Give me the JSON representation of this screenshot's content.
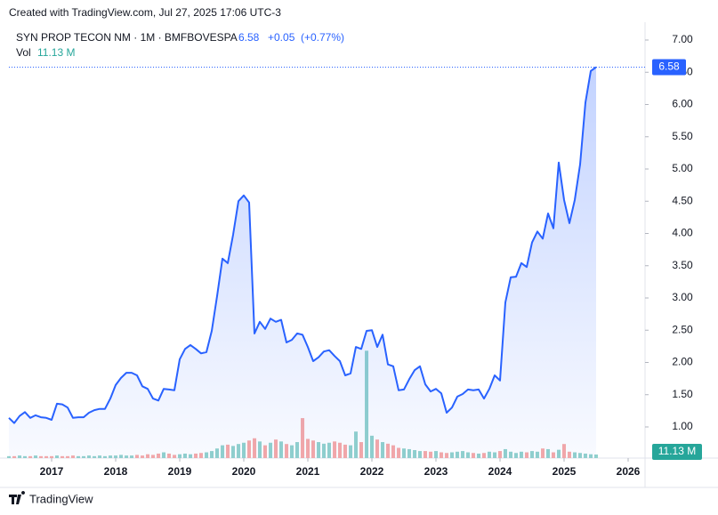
{
  "header": {
    "created": "Created with TradingView.com, Jul 27, 2025 17:06 UTC-3",
    "brand": "TradingView"
  },
  "legend": {
    "symbol": "SYN PROP TECON NM · 1M · BMFBOVESPA",
    "change": "+0.05",
    "change_pct": "(+0.77%)",
    "vol_title": "Vol",
    "vol_text": "11.13 M"
  },
  "chart_data": {
    "type": "line",
    "x": [
      2016.333,
      2016.417,
      2016.5,
      2016.583,
      2016.667,
      2016.75,
      2016.833,
      2016.917,
      2017,
      2017.083,
      2017.167,
      2017.25,
      2017.333,
      2017.417,
      2017.5,
      2017.583,
      2017.667,
      2017.75,
      2017.833,
      2017.917,
      2018,
      2018.083,
      2018.167,
      2018.25,
      2018.333,
      2018.417,
      2018.5,
      2018.583,
      2018.667,
      2018.75,
      2018.833,
      2018.917,
      2019,
      2019.083,
      2019.167,
      2019.25,
      2019.333,
      2019.417,
      2019.5,
      2019.583,
      2019.667,
      2019.75,
      2019.833,
      2019.917,
      2020,
      2020.083,
      2020.167,
      2020.25,
      2020.333,
      2020.417,
      2020.5,
      2020.583,
      2020.667,
      2020.75,
      2020.833,
      2020.917,
      2021,
      2021.083,
      2021.167,
      2021.25,
      2021.333,
      2021.417,
      2021.5,
      2021.583,
      2021.667,
      2021.75,
      2021.833,
      2021.917,
      2022,
      2022.083,
      2022.167,
      2022.25,
      2022.333,
      2022.417,
      2022.5,
      2022.583,
      2022.667,
      2022.75,
      2022.833,
      2022.917,
      2023,
      2023.083,
      2023.167,
      2023.25,
      2023.333,
      2023.417,
      2023.5,
      2023.583,
      2023.667,
      2023.75,
      2023.833,
      2023.917,
      2024,
      2024.083,
      2024.167,
      2024.25,
      2024.333,
      2024.417,
      2024.5,
      2024.583,
      2024.667,
      2024.75,
      2024.833,
      2024.917,
      2025,
      2025.083,
      2025.167,
      2025.25,
      2025.333,
      2025.417,
      2025.5
    ],
    "series": [
      {
        "name": "Price",
        "color": "#2962ff",
        "values": [
          1.14,
          1.06,
          1.17,
          1.23,
          1.14,
          1.18,
          1.15,
          1.14,
          1.11,
          1.36,
          1.35,
          1.3,
          1.14,
          1.15,
          1.15,
          1.22,
          1.26,
          1.28,
          1.28,
          1.44,
          1.65,
          1.76,
          1.84,
          1.84,
          1.8,
          1.63,
          1.59,
          1.44,
          1.41,
          1.59,
          1.58,
          1.57,
          2.05,
          2.21,
          2.27,
          2.21,
          2.14,
          2.16,
          2.49,
          3.03,
          3.61,
          3.54,
          3.98,
          4.5,
          4.59,
          4.48,
          2.45,
          2.63,
          2.52,
          2.68,
          2.63,
          2.66,
          2.31,
          2.35,
          2.45,
          2.43,
          2.24,
          2.02,
          2.08,
          2.17,
          2.19,
          2.1,
          2.02,
          1.8,
          1.83,
          2.24,
          2.21,
          2.49,
          2.5,
          2.24,
          2.43,
          1.97,
          1.94,
          1.57,
          1.58,
          1.74,
          1.88,
          1.94,
          1.66,
          1.55,
          1.59,
          1.52,
          1.22,
          1.3,
          1.47,
          1.51,
          1.58,
          1.57,
          1.58,
          1.44,
          1.59,
          1.8,
          1.72,
          2.93,
          3.32,
          3.33,
          3.54,
          3.48,
          3.86,
          4.03,
          3.92,
          4.31,
          4.08,
          5.1,
          4.52,
          4.16,
          4.52,
          5.07,
          6.03,
          6.52,
          6.58
        ]
      },
      {
        "name": "Vol",
        "axis": "y2",
        "values": [
          6,
          6,
          8,
          6,
          6,
          8,
          6,
          6,
          6,
          8,
          6,
          6,
          8,
          6,
          6,
          8,
          6,
          8,
          6,
          8,
          8,
          10,
          8,
          8,
          10,
          8,
          12,
          10,
          14,
          18,
          14,
          10,
          12,
          14,
          12,
          14,
          16,
          18,
          22,
          30,
          40,
          42,
          38,
          44,
          48,
          55,
          62,
          52,
          40,
          48,
          58,
          52,
          44,
          40,
          50,
          125,
          60,
          55,
          50,
          45,
          48,
          52,
          48,
          42,
          40,
          83,
          50,
          336,
          70,
          58,
          50,
          45,
          40,
          32,
          30,
          28,
          25,
          22,
          22,
          20,
          22,
          18,
          16,
          18,
          20,
          22,
          18,
          16,
          14,
          16,
          20,
          18,
          22,
          28,
          20,
          16,
          20,
          18,
          22,
          20,
          30,
          28,
          18,
          26,
          44,
          20,
          18,
          16,
          14,
          12,
          11.13
        ]
      }
    ],
    "up_color": "#92d2cc",
    "down_color": "#f7a9a7",
    "xlim": [
      2016.333,
      2026.264
    ],
    "xticks": [
      2017,
      2018,
      2019,
      2020,
      2021,
      2022,
      2023,
      2024,
      2025,
      2026
    ],
    "ylim": [
      0.517,
      7.207
    ],
    "yticks": [
      {
        "value": 1,
        "label": "1.00"
      },
      {
        "value": 1.5,
        "label": "1.50"
      },
      {
        "value": 2,
        "label": "2.00"
      },
      {
        "value": 2.5,
        "label": "2.50"
      },
      {
        "value": 3,
        "label": "3.00"
      },
      {
        "value": 3.5,
        "label": "3.50"
      },
      {
        "value": 4,
        "label": "4.00"
      },
      {
        "value": 4.5,
        "label": "4.50"
      },
      {
        "value": 5,
        "label": "5.00"
      },
      {
        "value": 5.5,
        "label": "5.50"
      },
      {
        "value": 6,
        "label": "6.00"
      },
      {
        "value": 6.5,
        "label": "6.50"
      },
      {
        "value": 7,
        "label": "7.00"
      }
    ],
    "y2lim": [
      0,
      1350
    ],
    "grid": false
  }
}
